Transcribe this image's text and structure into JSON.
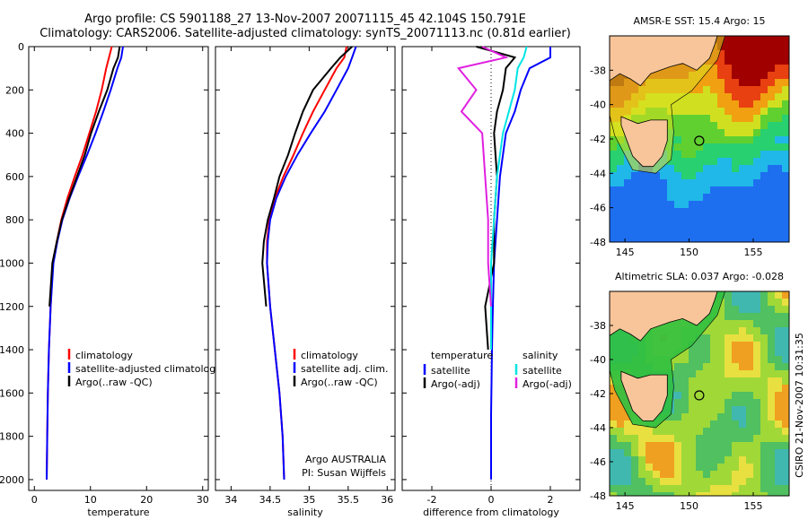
{
  "header": {
    "line1": "Argo profile: CS 5901188_27 13-Nov-2007 20071115_45 42.104S 150.791E",
    "line2": "Climatology: CARS2006. Satellite-adjusted climatology: synTS_20071113.nc (0.81d earlier)"
  },
  "stamp": "CSIRO 21-Nov-2007 10:31:35",
  "colors": {
    "climatology": "#ff0000",
    "satellite": "#0000ff",
    "argo": "#000000",
    "cyan": "#00e5e5",
    "magenta": "#e020e0",
    "land": "#f8c59a"
  },
  "chart_data": [
    {
      "type": "line",
      "id": "temperature",
      "xlabel": "temperature",
      "ylabel": "",
      "xlim": [
        -1,
        31
      ],
      "ylim": [
        0,
        2050
      ],
      "y_reversed": true,
      "xticks": [
        "0",
        "10",
        "20",
        "30"
      ],
      "yticks": [
        "0",
        "200",
        "400",
        "600",
        "800",
        "1000",
        "1200",
        "1400",
        "1600",
        "1800",
        "2000"
      ],
      "legend": [
        "climatology",
        "satellite-adjusted climatology",
        "Argo(..raw -QC)"
      ],
      "legend_placement": "lower-left",
      "series": [
        {
          "name": "climatology",
          "color": "#ff0000",
          "x": [
            13.8,
            13.3,
            12.8,
            12.0,
            11.0,
            9.8,
            8.6,
            7.2,
            5.9,
            4.8,
            4.0,
            3.3,
            2.9,
            2.6,
            2.4,
            2.3,
            2.2
          ],
          "y": [
            0,
            50,
            100,
            200,
            300,
            400,
            500,
            600,
            700,
            800,
            900,
            1000,
            1200,
            1400,
            1600,
            1800,
            2000
          ]
        },
        {
          "name": "satellite-adjusted climatology",
          "color": "#0000ff",
          "x": [
            15.8,
            15.5,
            14.8,
            13.6,
            12.3,
            10.9,
            9.4,
            7.8,
            6.3,
            5.0,
            4.1,
            3.4,
            2.9,
            2.6,
            2.4,
            2.3,
            2.2
          ],
          "y": [
            0,
            50,
            100,
            200,
            300,
            400,
            500,
            600,
            700,
            800,
            900,
            1000,
            1200,
            1400,
            1600,
            1800,
            2000
          ]
        },
        {
          "name": "Argo(..raw -QC)",
          "color": "#000000",
          "x": [
            15.2,
            14.9,
            14.1,
            13.0,
            11.5,
            10.1,
            9.0,
            7.6,
            6.2,
            4.9,
            4.0,
            3.2,
            2.7
          ],
          "y": [
            0,
            50,
            100,
            200,
            300,
            400,
            500,
            600,
            700,
            800,
            900,
            1000,
            1200
          ]
        }
      ]
    },
    {
      "type": "line",
      "id": "salinity",
      "xlabel": "salinity",
      "ylabel": "",
      "xlim": [
        33.8,
        36.1
      ],
      "ylim": [
        0,
        2050
      ],
      "y_reversed": true,
      "xticks": [
        "34",
        "34.5",
        "35",
        "35.5",
        "36"
      ],
      "legend": [
        "climatology",
        "satellite adj. clim.",
        "Argo(..raw -QC)"
      ],
      "legend_placement": "lower-right",
      "annotation": [
        "Argo AUSTRALIA",
        "PI: Susan Wijffels"
      ],
      "series": [
        {
          "name": "climatology",
          "color": "#ff0000",
          "x": [
            35.48,
            35.45,
            35.35,
            35.2,
            35.05,
            34.92,
            34.8,
            34.67,
            34.56,
            34.49,
            34.46,
            34.46,
            34.5,
            34.56,
            34.62,
            34.66,
            34.68
          ],
          "y": [
            0,
            50,
            100,
            200,
            300,
            400,
            500,
            600,
            700,
            800,
            900,
            1000,
            1200,
            1400,
            1600,
            1800,
            2000
          ]
        },
        {
          "name": "satellite adj. clim.",
          "color": "#0000ff",
          "x": [
            35.6,
            35.55,
            35.5,
            35.35,
            35.2,
            35.02,
            34.85,
            34.7,
            34.58,
            34.5,
            34.47,
            34.46,
            34.5,
            34.56,
            34.62,
            34.66,
            34.68
          ],
          "y": [
            0,
            50,
            100,
            200,
            300,
            400,
            500,
            600,
            700,
            800,
            900,
            1000,
            1200,
            1400,
            1600,
            1800,
            2000
          ]
        },
        {
          "name": "Argo(..raw -QC)",
          "color": "#000000",
          "x": [
            35.55,
            35.4,
            35.28,
            35.05,
            34.92,
            34.82,
            34.73,
            34.62,
            34.55,
            34.47,
            34.42,
            34.4,
            34.45
          ],
          "y": [
            0,
            50,
            100,
            200,
            300,
            400,
            500,
            600,
            700,
            800,
            900,
            1000,
            1200
          ]
        }
      ]
    },
    {
      "type": "line",
      "id": "difference",
      "xlabel": "difference from climatology",
      "ylabel": "",
      "xlim": [
        -3,
        3
      ],
      "ylim": [
        0,
        2050
      ],
      "y_reversed": true,
      "xticks": [
        "-2",
        "0",
        "2"
      ],
      "legend_headers": [
        "temperature",
        "salinity"
      ],
      "legend": [
        "satellite",
        "Argo(-adj)",
        "satellite",
        "Argo(-adj)"
      ],
      "legend_placement": "lower-center",
      "series": [
        {
          "name": "satellite",
          "group": "temperature",
          "color": "#0000ff",
          "x": [
            2.0,
            2.0,
            1.3,
            1.0,
            0.8,
            0.5,
            0.3,
            0.2,
            0.1,
            0.06,
            0.03,
            0.0,
            0.0
          ],
          "y": [
            0,
            50,
            100,
            200,
            300,
            400,
            600,
            800,
            1000,
            1200,
            1400,
            1700,
            2000
          ]
        },
        {
          "name": "Argo(-adj)",
          "group": "temperature",
          "color": "#000000",
          "x": [
            -0.5,
            0.8,
            0.5,
            0.4,
            0.2,
            0.1,
            0.2,
            0.1,
            0.1,
            -0.2,
            -0.1
          ],
          "y": [
            0,
            50,
            100,
            200,
            300,
            400,
            600,
            800,
            1000,
            1200,
            1400
          ]
        },
        {
          "name": "satellite",
          "group": "salinity",
          "color": "#00e5e5",
          "x": [
            1.2,
            1.1,
            0.9,
            0.8,
            0.6,
            0.4,
            0.2,
            0.1,
            0.0,
            0.0,
            0.0
          ],
          "y": [
            0,
            50,
            100,
            200,
            300,
            400,
            600,
            800,
            1000,
            1200,
            1400
          ]
        },
        {
          "name": "Argo(-adj)",
          "group": "salinity",
          "color": "#e020e0",
          "x": [
            -0.3,
            0.5,
            -1.1,
            -0.5,
            -1.0,
            -0.3,
            -0.2,
            -0.1,
            -0.1,
            0.0
          ],
          "y": [
            0,
            50,
            100,
            200,
            300,
            400,
            600,
            800,
            1000,
            1200
          ]
        }
      ]
    }
  ],
  "maps": [
    {
      "id": "sst",
      "title": "AMSR-E SST: 15.4 Argo: 15",
      "xticks": [
        "145",
        "150",
        "155"
      ],
      "yticks": [
        "-38",
        "-40",
        "-42",
        "-44",
        "-46",
        "-48"
      ],
      "xlim": [
        143.8,
        157.8
      ],
      "ylim": [
        -48,
        -36
      ],
      "argo_position": [
        150.791,
        -42.104
      ]
    },
    {
      "id": "sla",
      "title": "Altimetric SLA: 0.037 Argo: -0.028",
      "xticks": [
        "145",
        "150",
        "155"
      ],
      "yticks": [
        "-38",
        "-40",
        "-42",
        "-44",
        "-46",
        "-48"
      ],
      "xlim": [
        143.8,
        157.8
      ],
      "ylim": [
        -48,
        -36
      ],
      "argo_position": [
        150.791,
        -42.104
      ]
    }
  ]
}
